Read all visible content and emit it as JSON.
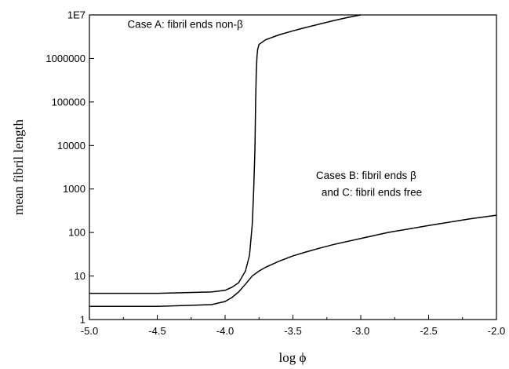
{
  "chart_data": {
    "type": "line",
    "title": "",
    "xlabel": "log ϕ",
    "ylabel": "mean fibril length",
    "xlim": [
      -5.0,
      -2.0
    ],
    "ylim": [
      1,
      10000000
    ],
    "yscale": "log",
    "grid": false,
    "x_tick_labels": [
      "-5.0",
      "-4.5",
      "-4.0",
      "-3.5",
      "-3.0",
      "-2.5",
      "-2.0"
    ],
    "y_tick_labels": [
      "1",
      "10",
      "100",
      "1000",
      "10000",
      "100000",
      "1000000",
      "1E7"
    ],
    "series": [
      {
        "x": [
          -5.0,
          -4.5,
          -4.1,
          -4.0,
          -3.95,
          -3.9,
          -3.85,
          -3.82,
          -3.8,
          -3.79,
          -3.78,
          -3.775,
          -3.77,
          -3.765,
          -3.76,
          -3.75,
          -3.7,
          -3.6,
          -3.5,
          -3.4,
          -3.3,
          -3.2,
          -3.1,
          -3.0
        ],
        "y": [
          4,
          4,
          4.3,
          4.7,
          5.5,
          7,
          13,
          30,
          150,
          800,
          8000,
          100000,
          500000,
          1100000,
          1600000,
          2100000,
          2700000,
          3500000,
          4300000,
          5200000,
          6200000,
          7400000,
          8700000,
          10000000
        ]
      },
      {
        "x": [
          -5.0,
          -4.5,
          -4.1,
          -4.0,
          -3.95,
          -3.9,
          -3.85,
          -3.8,
          -3.75,
          -3.7,
          -3.6,
          -3.5,
          -3.4,
          -3.3,
          -3.2,
          -3.0,
          -2.8,
          -2.5,
          -2.2,
          -2.0
        ],
        "y": [
          2,
          2,
          2.2,
          2.6,
          3.2,
          4.3,
          6.5,
          10,
          13,
          16,
          22,
          29,
          36,
          44,
          53,
          73,
          100,
          145,
          205,
          250
        ]
      }
    ],
    "annotations": [
      {
        "text": "Case A: fibril ends non-β",
        "x": -4.72,
        "y": 5000000
      },
      {
        "text": "Cases B: fibril ends β",
        "x": -3.33,
        "y": 1700
      },
      {
        "text": "and C: fibril ends free",
        "x": -3.29,
        "y": 700
      }
    ]
  }
}
